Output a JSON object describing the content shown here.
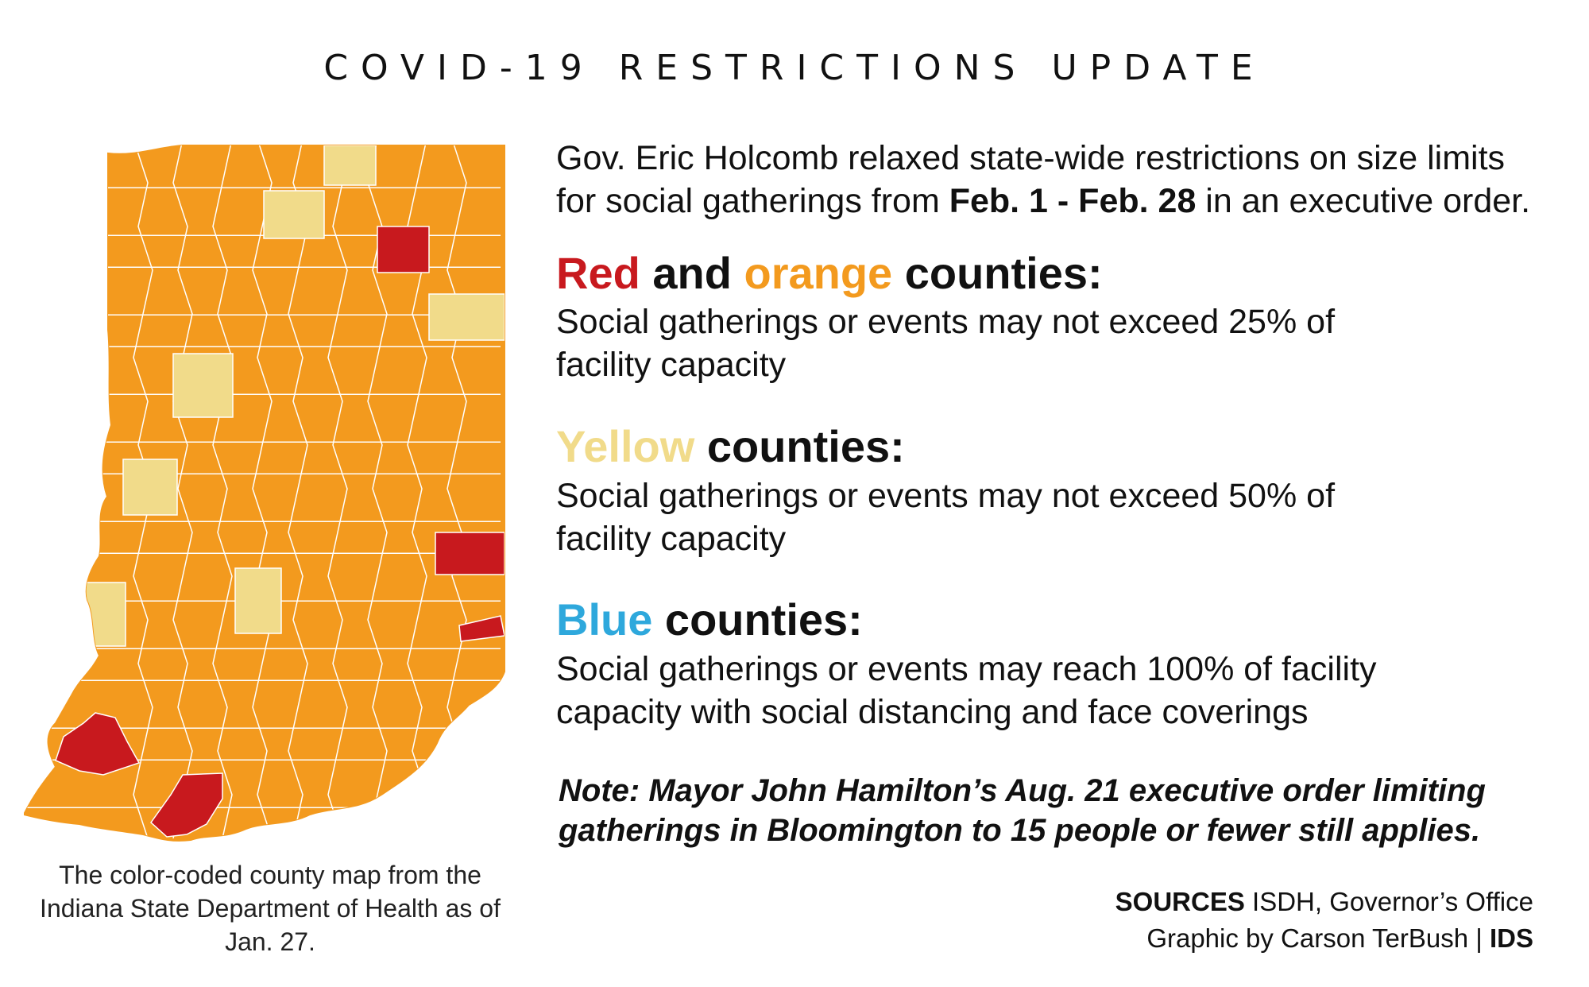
{
  "title": "COVID-19 RESTRICTIONS UPDATE",
  "intro": {
    "line1": "Gov. Eric Holcomb relaxed state-wide restrictions on size limits",
    "line2_prefix": "for social gatherings from ",
    "dates": "Feb. 1 - Feb. 28",
    "line2_suffix": " in an executive order."
  },
  "sections": {
    "red_orange": {
      "word_red": "Red",
      "word_and": " and ",
      "word_orange": "orange",
      "word_counties": " counties:",
      "line1": "Social gatherings or events may not exceed 25% of",
      "line2": "facility capacity"
    },
    "yellow": {
      "word_yellow": "Yellow",
      "word_counties": " counties:",
      "line1": "Social gatherings or events may not exceed 50% of",
      "line2": "facility capacity"
    },
    "blue": {
      "word_blue": "Blue",
      "word_counties": " counties:",
      "line1": "Social gatherings or events may reach 100% of facility",
      "line2": "capacity with social distancing and face coverings"
    }
  },
  "note": {
    "line1": "Note: Mayor John Hamilton’s Aug. 21 executive order limiting",
    "line2": "gatherings in Bloomington to 15 people or fewer still applies."
  },
  "caption": {
    "line1": "The color-coded county map from the",
    "line2": "Indiana State Department of Health as of",
    "line3": "Jan. 27."
  },
  "sources": {
    "label": "SOURCES",
    "text": " ISDH, Governor’s Office",
    "credit": "Graphic by Carson TerBush | ",
    "credit_org": "IDS"
  },
  "colors": {
    "red": "#c8191e",
    "orange": "#f39a1e",
    "yellow": "#f1db8a",
    "blue": "#2ea8dc",
    "county_border": "#ffffff"
  },
  "map": {
    "counties_red": 5,
    "counties_yellow": 7,
    "counties_blue": 0
  }
}
